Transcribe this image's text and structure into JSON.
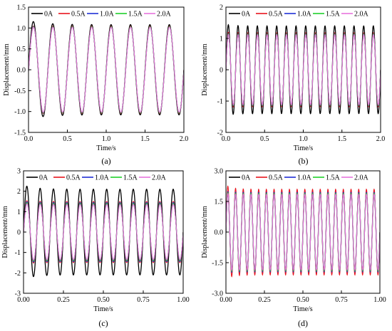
{
  "chart_data": [
    {
      "type": "line",
      "panel_label": "(a)",
      "xlabel": "Time/s",
      "ylabel": "Displacement/mm",
      "xlim": [
        0.0,
        2.0
      ],
      "ylim": [
        -1.5,
        1.5
      ],
      "x_ticks": [
        "0.0",
        "0.5",
        "1.0",
        "1.5",
        "2.0"
      ],
      "y_ticks": [
        "-1.5",
        "-1.0",
        "-0.5",
        "0.0",
        "0.5",
        "1.0",
        "1.5"
      ],
      "y_tick_values": [
        -1.5,
        -1.0,
        -0.5,
        0.0,
        0.5,
        1.0,
        1.5
      ],
      "x_tick_values": [
        0.0,
        0.5,
        1.0,
        1.5,
        2.0
      ],
      "frequency_hz": 4,
      "series": [
        {
          "name": "0A",
          "color": "#000000",
          "amplitude": 1.08,
          "overshoot": 1.18
        },
        {
          "name": "0.5A",
          "color": "#e8141c",
          "amplitude": 1.04,
          "overshoot": 1.05
        },
        {
          "name": "1.0A",
          "color": "#1f2fd6",
          "amplitude": 1.03,
          "overshoot": 1.04
        },
        {
          "name": "1.5A",
          "color": "#1fd12b",
          "amplitude": 1.03,
          "overshoot": 1.03
        },
        {
          "name": "2.0A",
          "color": "#e874dd",
          "amplitude": 1.02,
          "overshoot": 1.02
        }
      ]
    },
    {
      "type": "line",
      "panel_label": "(b)",
      "xlabel": "Time/s",
      "ylabel": "Displacement/mm",
      "xlim": [
        0.0,
        2.0
      ],
      "ylim": [
        -2.0,
        2.0
      ],
      "x_ticks": [
        "0.0",
        "0.5",
        "1.0",
        "1.5",
        "2.0"
      ],
      "y_ticks": [
        "-2",
        "-1",
        "0",
        "1",
        "2"
      ],
      "y_tick_values": [
        -2,
        -1,
        0,
        1,
        2
      ],
      "x_tick_values": [
        0.0,
        0.5,
        1.0,
        1.5,
        2.0
      ],
      "frequency_hz": 8,
      "series": [
        {
          "name": "0A",
          "color": "#000000",
          "amplitude": 1.4,
          "overshoot": 1.45
        },
        {
          "name": "0.5A",
          "color": "#e8141c",
          "amplitude": 1.18,
          "overshoot": 1.2
        },
        {
          "name": "1.0A",
          "color": "#1f2fd6",
          "amplitude": 1.15,
          "overshoot": 1.16
        },
        {
          "name": "1.5A",
          "color": "#1fd12b",
          "amplitude": 1.14,
          "overshoot": 1.15
        },
        {
          "name": "2.0A",
          "color": "#e874dd",
          "amplitude": 1.12,
          "overshoot": 1.13
        }
      ]
    },
    {
      "type": "line",
      "panel_label": "(c)",
      "xlabel": "Time/s",
      "ylabel": "Displacement/mm",
      "xlim": [
        0.0,
        1.0
      ],
      "ylim": [
        -3,
        3
      ],
      "x_ticks": [
        "0.00",
        "0.25",
        "0.50",
        "0.75",
        "1.00"
      ],
      "y_ticks": [
        "-3",
        "-2",
        "-1",
        "0",
        "1",
        "2",
        "3"
      ],
      "y_tick_values": [
        -3,
        -2,
        -1,
        0,
        1,
        2,
        3
      ],
      "x_tick_values": [
        0.0,
        0.25,
        0.5,
        0.75,
        1.0
      ],
      "frequency_hz": 12,
      "series": [
        {
          "name": "0A",
          "color": "#000000",
          "amplitude": 2.1,
          "overshoot": 2.3
        },
        {
          "name": "0.5A",
          "color": "#e8141c",
          "amplitude": 1.5,
          "overshoot": 1.55
        },
        {
          "name": "1.0A",
          "color": "#1f2fd6",
          "amplitude": 1.45,
          "overshoot": 1.5
        },
        {
          "name": "1.5A",
          "color": "#1fd12b",
          "amplitude": 1.4,
          "overshoot": 1.45
        },
        {
          "name": "2.0A",
          "color": "#e874dd",
          "amplitude": 1.35,
          "overshoot": 1.4
        }
      ]
    },
    {
      "type": "line",
      "panel_label": "(d)",
      "xlabel": "Time/s",
      "ylabel": "Displacement/mm",
      "xlim": [
        0.0,
        1.0
      ],
      "ylim": [
        -3.0,
        3.0
      ],
      "x_ticks": [
        "0.00",
        "0.25",
        "0.50",
        "0.75",
        "1.00"
      ],
      "y_ticks": [
        "-3.0",
        "-1.5",
        "0.0",
        "1.5",
        "3.0"
      ],
      "y_tick_values": [
        -3.0,
        -1.5,
        0.0,
        1.5,
        3.0
      ],
      "x_tick_values": [
        0.0,
        0.25,
        0.5,
        0.75,
        1.0
      ],
      "frequency_hz": 20,
      "series": [
        {
          "name": "0A",
          "color": "#000000",
          "amplitude": 1.9,
          "overshoot": 1.95
        },
        {
          "name": "0.5A",
          "color": "#e8141c",
          "amplitude": 2.1,
          "overshoot": 2.3
        },
        {
          "name": "1.0A",
          "color": "#1f2fd6",
          "amplitude": 1.95,
          "overshoot": 2.0
        },
        {
          "name": "1.5A",
          "color": "#1fd12b",
          "amplitude": 1.9,
          "overshoot": 1.95
        },
        {
          "name": "2.0A",
          "color": "#e874dd",
          "amplitude": 1.85,
          "overshoot": 1.9
        }
      ]
    }
  ]
}
